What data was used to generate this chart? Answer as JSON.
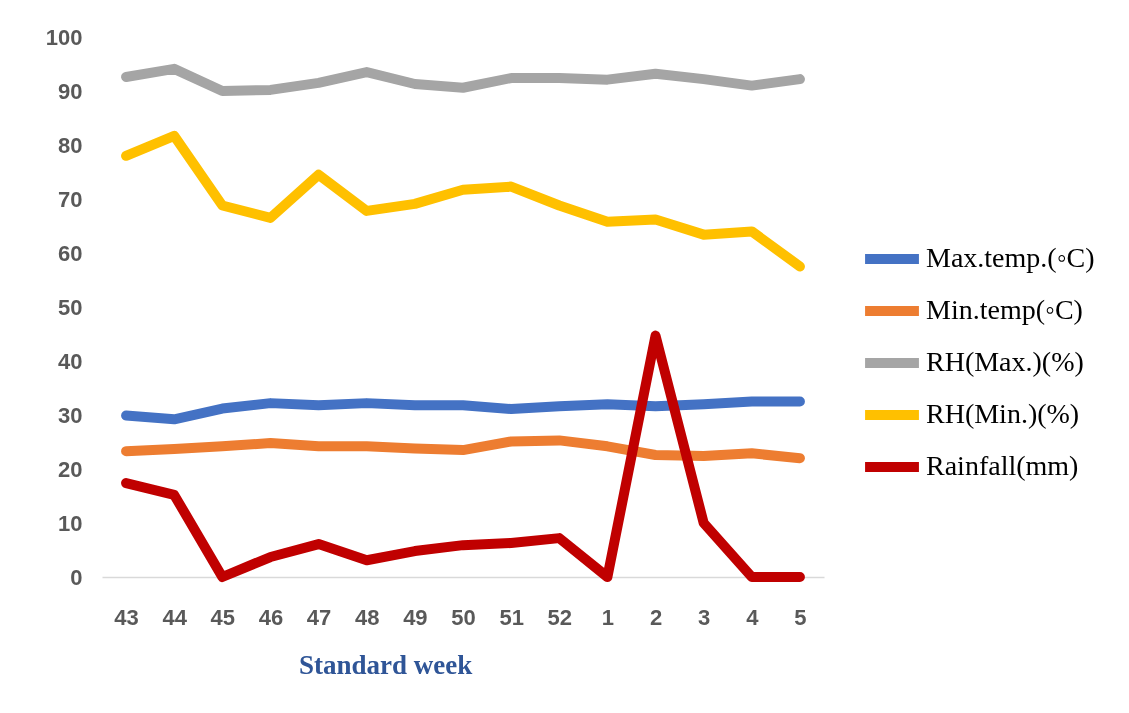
{
  "chart_data": {
    "type": "line",
    "xlabel": "Standard week",
    "categories": [
      "43",
      "44",
      "45",
      "46",
      "47",
      "48",
      "49",
      "50",
      "51",
      "52",
      "1",
      "2",
      "3",
      "4",
      "5"
    ],
    "series": [
      {
        "name": "Max.temp.(◦C)",
        "color": "#4472c4",
        "values": [
          29.9,
          29.2,
          31.2,
          32.2,
          31.8,
          32.2,
          31.8,
          31.8,
          31.1,
          31.6,
          32.0,
          31.6,
          32.0,
          32.5,
          32.5
        ]
      },
      {
        "name": "Min.temp(◦C)",
        "color": "#ed7d31",
        "values": [
          23.3,
          23.7,
          24.2,
          24.8,
          24.2,
          24.2,
          23.8,
          23.5,
          25.1,
          25.3,
          24.2,
          22.6,
          22.4,
          22.9,
          22.0
        ]
      },
      {
        "name": "RH(Max.)(%)",
        "color": "#a5a5a5",
        "values": [
          92.6,
          94.1,
          90.0,
          90.2,
          91.5,
          93.5,
          91.3,
          90.6,
          92.4,
          92.4,
          92.1,
          93.2,
          92.2,
          91.0,
          92.2
        ]
      },
      {
        "name": "RH(Min.)(%)",
        "color": "#ffc000",
        "values": [
          78.0,
          81.7,
          68.8,
          66.5,
          74.5,
          67.8,
          69.1,
          71.7,
          72.3,
          68.8,
          65.8,
          66.2,
          63.4,
          64.0,
          57.5
        ]
      },
      {
        "name": "Rainfall(mm)",
        "color": "#c00000",
        "values": [
          17.4,
          15.2,
          0,
          3.7,
          6.1,
          3.1,
          4.8,
          5.9,
          6.3,
          7.2,
          0,
          44.7,
          10.0,
          0,
          0
        ]
      }
    ],
    "ylim": [
      0,
      100
    ],
    "yticks": [
      0,
      10,
      20,
      30,
      40,
      50,
      60,
      70,
      80,
      90,
      100
    ],
    "legend": "right"
  }
}
